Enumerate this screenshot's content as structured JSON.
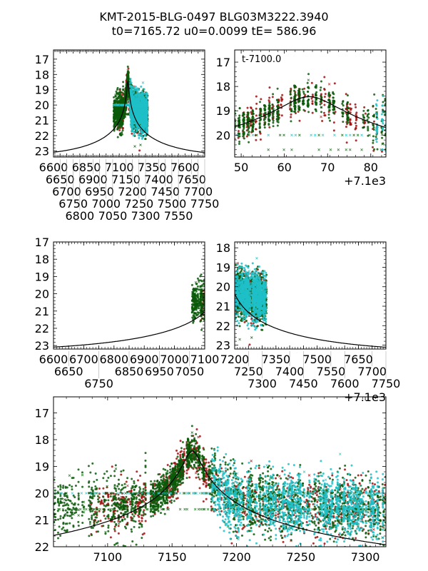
{
  "figure": {
    "title_line1": "KMT-2015-BLG-0497 BLG03M3222.3940",
    "title_line2": "t0=7165.72 u0=0.0099 tE= 586.96",
    "colors": {
      "red": "#a01010",
      "green": "#0a5a0a",
      "cyan": "#20c0c8",
      "model": "#000000"
    }
  },
  "chart_data": [
    {
      "name": "overview",
      "type": "scatter",
      "title": "",
      "xlabel": "",
      "ylabel": "",
      "xlim": [
        6600,
        7750
      ],
      "ylim": [
        23.4,
        16.4
      ],
      "y_inverted": true,
      "xtick_labels": [
        "6600",
        "6650",
        "6700",
        "6750",
        "6800",
        "6850",
        "6900",
        "6950",
        "7000",
        "7050",
        "7100",
        "7150",
        "7200",
        "7250",
        "7300",
        "7350",
        "7400",
        "7450",
        "7500",
        "7550",
        "7600",
        "7650",
        "7700",
        "7750"
      ],
      "ytick_labels": [
        "17",
        "18",
        "19",
        "20",
        "21",
        "22",
        "23"
      ],
      "annotation": "",
      "series": [
        {
          "name": "red",
          "x_range": [
            7100,
            7300
          ],
          "y_range": [
            17.0,
            23.4
          ]
        },
        {
          "name": "green",
          "x_range": [
            7058,
            7230
          ],
          "y_range": [
            16.5,
            23.4
          ]
        },
        {
          "name": "cyan",
          "x_range": [
            7180,
            7316
          ],
          "y_range": [
            16.8,
            23.4
          ]
        },
        {
          "name": "model",
          "t0": 7165.72,
          "u0": 0.0099,
          "tE": 586.96
        }
      ]
    },
    {
      "name": "peak-zoom",
      "type": "scatter",
      "xlim": [
        48.5,
        83.5
      ],
      "ylim": [
        20.9,
        16.5
      ],
      "x_offset_label": "+7.1e3",
      "annotation": "t-7100.0",
      "xtick_labels": [
        "50",
        "60",
        "70",
        "80"
      ],
      "ytick_labels": [
        "17",
        "18",
        "19",
        "20"
      ],
      "series": [
        {
          "name": "red"
        },
        {
          "name": "green"
        },
        {
          "name": "cyan"
        },
        {
          "name": "model",
          "peak_mag": 18.42,
          "peak_t": 65.72
        }
      ]
    },
    {
      "name": "pre-event",
      "type": "scatter",
      "xlim": [
        6600,
        7100
      ],
      "ylim": [
        23.2,
        17.0
      ],
      "xtick_labels": [
        "6600",
        "6650",
        "6700",
        "6750",
        "6800",
        "6850",
        "6900",
        "6950",
        "7000",
        "7050",
        "7100"
      ],
      "ytick_labels": [
        "17",
        "18",
        "19",
        "20",
        "21",
        "22",
        "23"
      ],
      "series": [
        {
          "name": "red"
        },
        {
          "name": "green"
        },
        {
          "name": "model"
        }
      ]
    },
    {
      "name": "post-event",
      "type": "scatter",
      "xlim": [
        7200,
        7750
      ],
      "ylim": [
        23.2,
        17.7
      ],
      "x_offset_label": "+7.1e3",
      "xtick_labels": [
        "7200",
        "7250",
        "7300",
        "7350",
        "7400",
        "7450",
        "7500",
        "7550",
        "7600",
        "7650",
        "7700",
        "7750"
      ],
      "ytick_labels": [
        "18",
        "19",
        "20",
        "21",
        "22",
        "23"
      ],
      "series": [
        {
          "name": "red"
        },
        {
          "name": "green"
        },
        {
          "name": "cyan"
        },
        {
          "name": "model"
        }
      ]
    },
    {
      "name": "season",
      "type": "scatter",
      "xlim": [
        7058,
        7316
      ],
      "ylim": [
        22.0,
        16.4
      ],
      "xtick_labels": [
        "7100",
        "7150",
        "7200",
        "7250",
        "7300"
      ],
      "ytick_labels": [
        "17",
        "18",
        "19",
        "20",
        "21",
        "22"
      ],
      "series": [
        {
          "name": "red"
        },
        {
          "name": "green"
        },
        {
          "name": "cyan"
        },
        {
          "name": "model"
        }
      ]
    }
  ]
}
